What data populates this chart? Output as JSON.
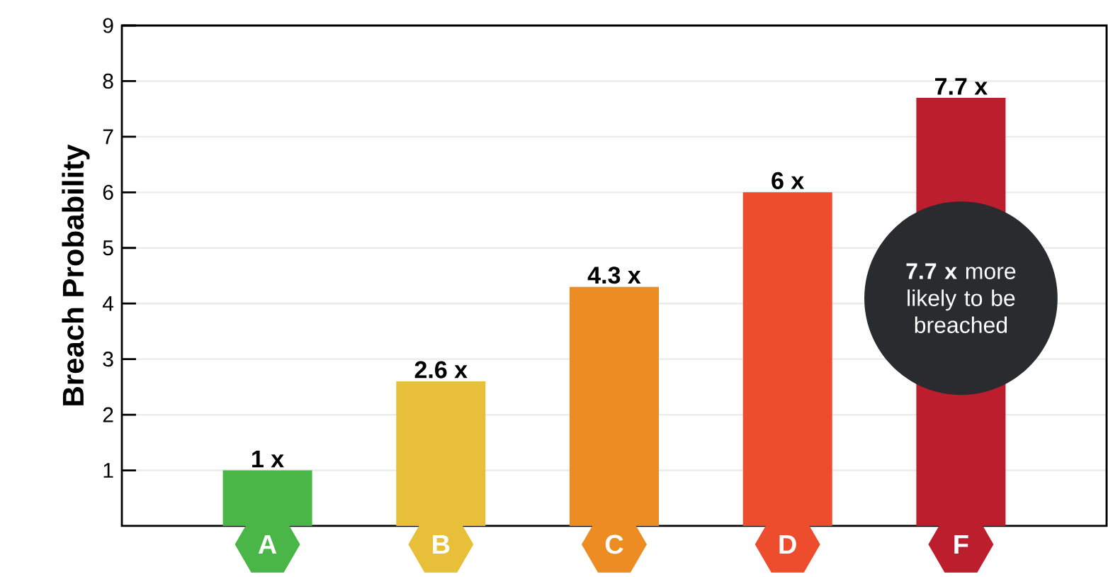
{
  "chart_data": {
    "type": "bar",
    "ylabel": "Breach Probability",
    "categories": [
      "A",
      "B",
      "C",
      "D",
      "F"
    ],
    "values": [
      1,
      2.6,
      4.3,
      6,
      7.7
    ],
    "colors": [
      "#4bb648",
      "#e8bf38",
      "#ec8c22",
      "#ee4d2d",
      "#bc1e2d"
    ],
    "value_labels": [
      "1 x",
      "2.6 x",
      "4.3 x",
      "6 x",
      "7.7 x"
    ],
    "ylim": [
      0,
      9
    ],
    "yticks": [
      1,
      2,
      3,
      4,
      5,
      6,
      7,
      8,
      9
    ],
    "grid": "y",
    "annotations": [
      "**7.7 x** more likely to be breached"
    ]
  }
}
